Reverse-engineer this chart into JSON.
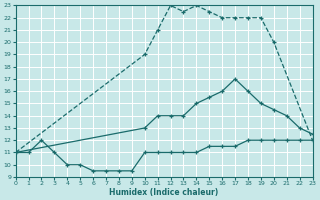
{
  "xlabel": "Humidex (Indice chaleur)",
  "xlim": [
    0,
    23
  ],
  "ylim": [
    9,
    23
  ],
  "xticks": [
    0,
    1,
    2,
    3,
    4,
    5,
    6,
    7,
    8,
    9,
    10,
    11,
    12,
    13,
    14,
    15,
    16,
    17,
    18,
    19,
    20,
    21,
    22,
    23
  ],
  "yticks": [
    9,
    10,
    11,
    12,
    13,
    14,
    15,
    16,
    17,
    18,
    19,
    20,
    21,
    22,
    23
  ],
  "bg_color": "#c8e8e8",
  "grid_color": "#e0e0e0",
  "line_color": "#1a6b6b",
  "curve_top_x": [
    0,
    10,
    11,
    12,
    13,
    14,
    15,
    16,
    17,
    18,
    19,
    20,
    23
  ],
  "curve_top_y": [
    11,
    19,
    21,
    23,
    22.5,
    23,
    22.5,
    22,
    22,
    22,
    22,
    20,
    12
  ],
  "curve_mid_x": [
    0,
    10,
    11,
    12,
    13,
    14,
    15,
    16,
    17,
    18,
    19,
    20,
    21,
    22,
    23
  ],
  "curve_mid_y": [
    11,
    13,
    14,
    14,
    14,
    15,
    15.5,
    16,
    17,
    16,
    15,
    14.5,
    14,
    13,
    12.5
  ],
  "curve_bot_x": [
    0,
    1,
    2,
    3,
    4,
    5,
    6,
    7,
    8,
    9,
    10,
    11,
    12,
    13,
    14,
    15,
    16,
    17,
    18,
    19,
    20,
    21,
    22,
    23
  ],
  "curve_bot_y": [
    11,
    11,
    12,
    11,
    10,
    10,
    9.5,
    9.5,
    9.5,
    9.5,
    11,
    11,
    11,
    11,
    11,
    11.5,
    11.5,
    11.5,
    12,
    12,
    12,
    12,
    12,
    12
  ]
}
